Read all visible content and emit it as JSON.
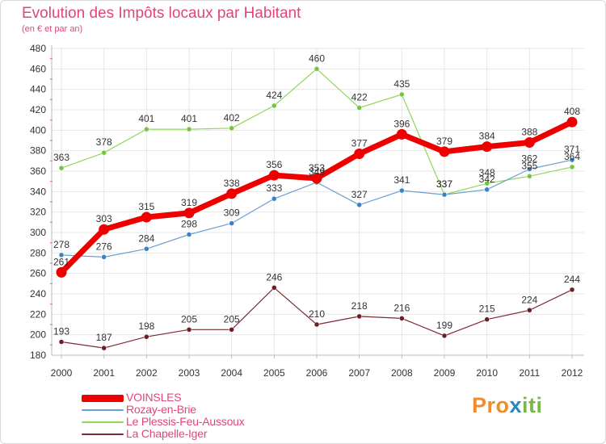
{
  "header": {
    "title": "Evolution des Impôts locaux par Habitant",
    "subtitle": "(en € et par an)"
  },
  "brand": {
    "part1": "Pro",
    "part2": "x",
    "part3": "iti"
  },
  "colors": {
    "title": "#e0457b",
    "grid": "#e6e6e6",
    "axis": "#bbbbbb",
    "minor_tick": "#e0457b"
  },
  "chart_data": {
    "type": "line",
    "x": [
      "2000",
      "2001",
      "2002",
      "2003",
      "2004",
      "2005",
      "2006",
      "2007",
      "2008",
      "2009",
      "2010",
      "2011",
      "2012"
    ],
    "ylim": [
      180,
      480
    ],
    "yticks": [
      180,
      200,
      220,
      240,
      260,
      280,
      300,
      320,
      340,
      360,
      380,
      400,
      420,
      440,
      460,
      480
    ],
    "grid": true,
    "legend_position": "bottom-left",
    "series": [
      {
        "name": "Le Plessis-Feu-Aussoux",
        "color": "#8fd75a",
        "marker": "#76c43f",
        "width": 1.2,
        "values": [
          363,
          378,
          401,
          401,
          402,
          424,
          460,
          422,
          435,
          337,
          348,
          355,
          364
        ]
      },
      {
        "name": "Rozay-en-Brie",
        "color": "#6a9fd2",
        "marker": "#3f7fc4",
        "width": 1.2,
        "values": [
          278,
          276,
          284,
          298,
          309,
          333,
          349,
          327,
          341,
          337,
          342,
          362,
          371
        ]
      },
      {
        "name": "La Chapelle-Iger",
        "color": "#7a2b33",
        "marker": "#6b1e26",
        "width": 1.2,
        "values": [
          193,
          187,
          198,
          205,
          205,
          246,
          210,
          218,
          216,
          199,
          215,
          224,
          244
        ]
      },
      {
        "name": "VOINSLES",
        "color": "#ee0000",
        "marker": "#ee0000",
        "width": 7,
        "values": [
          261,
          303,
          315,
          319,
          338,
          356,
          353,
          377,
          396,
          379,
          384,
          388,
          408
        ]
      }
    ],
    "legend_order": [
      "VOINSLES",
      "Rozay-en-Brie",
      "Le Plessis-Feu-Aussoux",
      "La Chapelle-Iger"
    ]
  }
}
